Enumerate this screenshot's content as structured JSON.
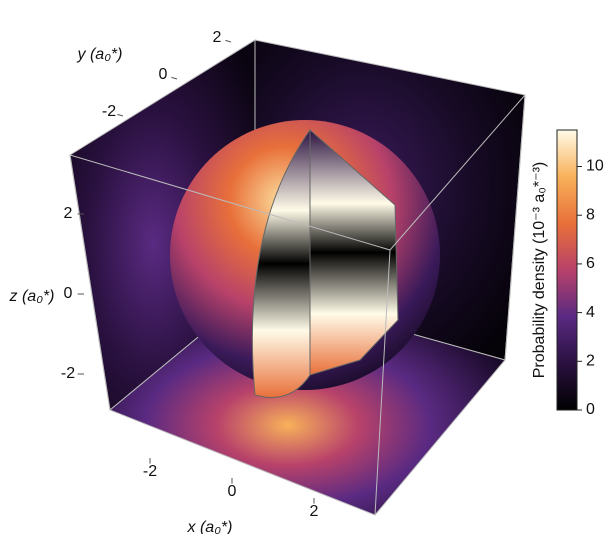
{
  "chart_data": {
    "type": "density3d",
    "x_label": "x (a₀*)",
    "y_label": "y (a₀*)",
    "z_label": "z (a₀*)",
    "colorbar_label": "Probability density (10⁻³ a₀*⁻³)",
    "xlim": [
      -3.5,
      3.5
    ],
    "ylim": [
      -3.5,
      3.5
    ],
    "zlim": [
      -3.5,
      3.5
    ],
    "xticks": [
      -2,
      0,
      2
    ],
    "yticks": [
      -2,
      0,
      2
    ],
    "zticks": [
      -2,
      0,
      2
    ],
    "clim": [
      0,
      11.5
    ],
    "cticks": [
      0,
      2,
      4,
      6,
      8,
      10
    ],
    "colormap": [
      "#000000",
      "#2a1140",
      "#5a2a82",
      "#b8426a",
      "#e8703a",
      "#f8b15a",
      "#fffbe8"
    ]
  }
}
